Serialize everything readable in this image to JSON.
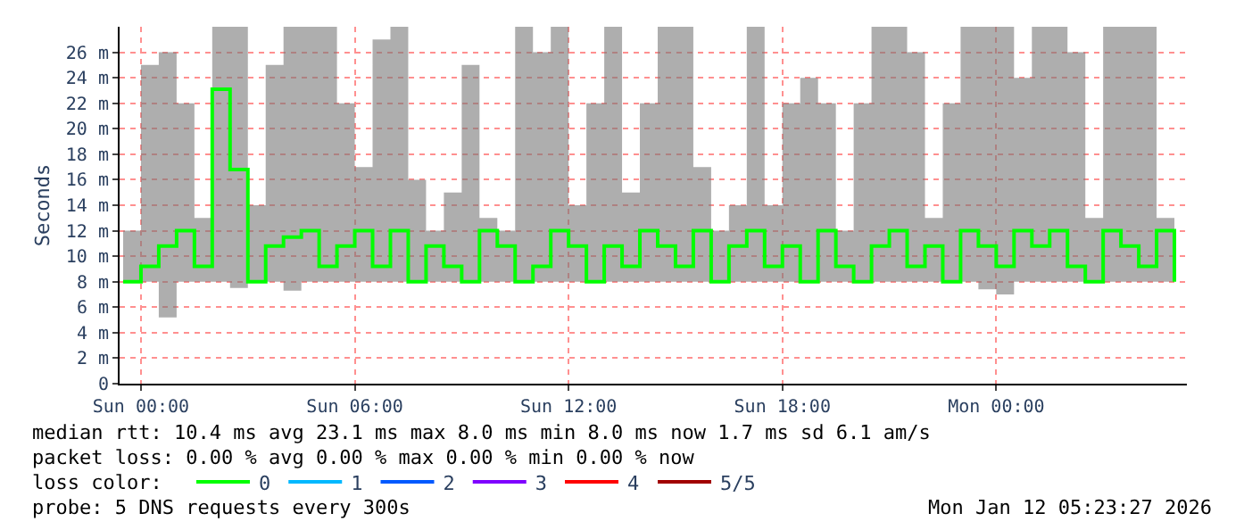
{
  "chart_data": {
    "type": "step",
    "ylabel": "Seconds",
    "x": [
      "2026-01-10T23:30",
      "2026-01-11T00:00",
      "2026-01-11T00:30",
      "2026-01-11T01:00",
      "2026-01-11T01:30",
      "2026-01-11T02:00",
      "2026-01-11T02:30",
      "2026-01-11T03:00",
      "2026-01-11T03:30",
      "2026-01-11T04:00",
      "2026-01-11T04:30",
      "2026-01-11T05:00",
      "2026-01-11T05:30",
      "2026-01-11T06:00",
      "2026-01-11T06:30",
      "2026-01-11T07:00",
      "2026-01-11T07:30",
      "2026-01-11T08:00",
      "2026-01-11T08:30",
      "2026-01-11T09:00",
      "2026-01-11T09:30",
      "2026-01-11T10:00",
      "2026-01-11T10:30",
      "2026-01-11T11:00",
      "2026-01-11T11:30",
      "2026-01-11T12:00",
      "2026-01-11T12:30",
      "2026-01-11T13:00",
      "2026-01-11T13:30",
      "2026-01-11T14:00",
      "2026-01-11T14:30",
      "2026-01-11T15:00",
      "2026-01-11T15:30",
      "2026-01-11T16:00",
      "2026-01-11T16:30",
      "2026-01-11T17:00",
      "2026-01-11T17:30",
      "2026-01-11T18:00",
      "2026-01-11T18:30",
      "2026-01-11T19:00",
      "2026-01-11T19:30",
      "2026-01-11T20:00",
      "2026-01-11T20:30",
      "2026-01-11T21:00",
      "2026-01-11T21:30",
      "2026-01-11T22:00",
      "2026-01-11T22:30",
      "2026-01-11T23:00",
      "2026-01-11T23:30",
      "2026-01-12T00:00",
      "2026-01-12T00:30",
      "2026-01-12T01:00",
      "2026-01-12T01:30",
      "2026-01-12T02:00",
      "2026-01-12T02:30",
      "2026-01-12T03:00",
      "2026-01-12T03:30",
      "2026-01-12T04:00",
      "2026-01-12T04:30",
      "2026-01-12T05:00"
    ],
    "series": [
      {
        "name": "0",
        "color": "#00ff00",
        "values": [
          8,
          9.2,
          10.8,
          12,
          9.2,
          23.1,
          16.8,
          8,
          10.8,
          11.5,
          12,
          9.2,
          10.8,
          12,
          9.2,
          12,
          8,
          10.8,
          9.2,
          8,
          12,
          10.8,
          8,
          9.2,
          12,
          10.8,
          8,
          10.8,
          9.2,
          12,
          10.8,
          9.2,
          12,
          8,
          10.8,
          12,
          9.2,
          10.8,
          8,
          12,
          9.2,
          8,
          10.8,
          12,
          9.2,
          10.8,
          8,
          12,
          10.8,
          9.2,
          12,
          10.8,
          12,
          9.2,
          8,
          12,
          10.8,
          9.2,
          12,
          8
        ],
        "lower": [
          8,
          8,
          5.2,
          8,
          8,
          8,
          7.5,
          8,
          8,
          7.3,
          8,
          8,
          8,
          8,
          8,
          8,
          8,
          8,
          8,
          8,
          8,
          8,
          8,
          8,
          8,
          8,
          8,
          8,
          8,
          8,
          8,
          8,
          8,
          8,
          8,
          8,
          8,
          8,
          8,
          8,
          8,
          8,
          8,
          8,
          8,
          8,
          8,
          8,
          7.4,
          7,
          8,
          8,
          8,
          8,
          8,
          8,
          8,
          8,
          8,
          8
        ],
        "upper": [
          12,
          25,
          26,
          22,
          13,
          28,
          28,
          14,
          25,
          28,
          28,
          28,
          22,
          17,
          27,
          28,
          16,
          12,
          15,
          25,
          13,
          12,
          28,
          26,
          28,
          14,
          22,
          28,
          15,
          22,
          28,
          28,
          17,
          12,
          14,
          28,
          14,
          22,
          24,
          22,
          12,
          22,
          28,
          28,
          26,
          13,
          22,
          28,
          28,
          28,
          24,
          28,
          28,
          26,
          13,
          28,
          28,
          28,
          13,
          22
        ]
      },
      {
        "name": "1",
        "color": "#00b8ff",
        "values": [
          null,
          null,
          null,
          null,
          null,
          null,
          null,
          null,
          null,
          null,
          null,
          null,
          null,
          null,
          null,
          null,
          null,
          null,
          null,
          null,
          null,
          null,
          null,
          null,
          null,
          null,
          null,
          null,
          null,
          null,
          null,
          null,
          null,
          null,
          null,
          null,
          null,
          null,
          null,
          null,
          null,
          null,
          null,
          null,
          null,
          null,
          null,
          null,
          null,
          null,
          null,
          null,
          null,
          null,
          null,
          null,
          null,
          null,
          null,
          null
        ]
      },
      {
        "name": "2",
        "color": "#0059ff",
        "values": [
          null,
          null,
          null,
          null,
          null,
          null,
          null,
          null,
          null,
          null,
          null,
          null,
          null,
          null,
          null,
          null,
          null,
          null,
          null,
          null,
          null,
          null,
          null,
          null,
          null,
          null,
          null,
          null,
          null,
          null,
          null,
          null,
          null,
          null,
          null,
          null,
          null,
          null,
          null,
          null,
          null,
          null,
          null,
          null,
          null,
          null,
          null,
          null,
          null,
          null,
          null,
          null,
          null,
          null,
          null,
          null,
          null,
          null,
          null,
          null
        ]
      },
      {
        "name": "3",
        "color": "#7e00ff",
        "values": [
          null,
          null,
          null,
          null,
          null,
          null,
          null,
          null,
          null,
          null,
          null,
          null,
          null,
          null,
          null,
          null,
          null,
          null,
          null,
          null,
          null,
          null,
          null,
          null,
          null,
          null,
          null,
          null,
          null,
          null,
          null,
          null,
          null,
          null,
          null,
          null,
          null,
          null,
          null,
          null,
          null,
          null,
          null,
          null,
          null,
          null,
          null,
          null,
          null,
          null,
          null,
          null,
          null,
          null,
          null,
          null,
          null,
          null,
          null,
          null
        ]
      },
      {
        "name": "4",
        "color": "#ff0000",
        "values": [
          null,
          null,
          null,
          null,
          null,
          null,
          null,
          null,
          null,
          null,
          null,
          null,
          null,
          null,
          null,
          null,
          null,
          null,
          null,
          null,
          null,
          null,
          null,
          null,
          null,
          null,
          null,
          null,
          null,
          null,
          null,
          null,
          null,
          null,
          null,
          null,
          null,
          null,
          null,
          null,
          null,
          null,
          null,
          null,
          null,
          null,
          null,
          null,
          null,
          null,
          null,
          null,
          null,
          null,
          null,
          null,
          null,
          null,
          null,
          null
        ]
      },
      {
        "name": "5/5",
        "color": "#a10000",
        "values": [
          null,
          null,
          null,
          null,
          null,
          null,
          null,
          null,
          null,
          null,
          null,
          null,
          null,
          null,
          null,
          null,
          null,
          null,
          null,
          null,
          null,
          null,
          null,
          null,
          null,
          null,
          null,
          null,
          null,
          null,
          null,
          null,
          null,
          null,
          null,
          null,
          null,
          null,
          null,
          null,
          null,
          null,
          null,
          null,
          null,
          null,
          null,
          null,
          null,
          null,
          null,
          null,
          null,
          null,
          null,
          null,
          null,
          null,
          null,
          null
        ]
      }
    ],
    "xlim": [
      "2026-01-10T23:24",
      "2026-01-12T05:21"
    ],
    "xticks": [
      {
        "value": "2026-01-11T00:00",
        "label": "Sun 00:00"
      },
      {
        "value": "2026-01-11T06:00",
        "label": "Sun 06:00"
      },
      {
        "value": "2026-01-11T12:00",
        "label": "Sun 12:00"
      },
      {
        "value": "2026-01-11T18:00",
        "label": "Sun 18:00"
      },
      {
        "value": "2026-01-12T00:00",
        "label": "Mon 00:00"
      }
    ],
    "ylim": [
      0,
      28
    ],
    "yticks": [
      0,
      {
        "value": 2,
        "label": "2 m"
      },
      {
        "value": 4,
        "label": "4 m"
      },
      {
        "value": 6,
        "label": "6 m"
      },
      {
        "value": 8,
        "label": "8 m"
      },
      {
        "value": 10,
        "label": "10 m"
      },
      {
        "value": 12,
        "label": "12 m"
      },
      {
        "value": 14,
        "label": "14 m"
      },
      {
        "value": 16,
        "label": "16 m"
      },
      {
        "value": 18,
        "label": "18 m"
      },
      {
        "value": 20,
        "label": "20 m"
      },
      {
        "value": 22,
        "label": "22 m"
      },
      {
        "value": 24,
        "label": "24 m"
      },
      {
        "value": 26,
        "label": "26 m"
      }
    ],
    "grid": true,
    "legend": "bottom",
    "annotations": [
      "median rtt: 10.4 ms avg 23.1 ms max 8.0 ms min 8.0 ms now 1.7 ms sd 6.1 am/s",
      "packet loss: 0.00 % avg 0.00 % max 0.00 % min 0.00 % now",
      "loss color:",
      "probe: 5 DNS requests every 300s",
      "Mon Jan 12 05:23:27 2026"
    ]
  }
}
